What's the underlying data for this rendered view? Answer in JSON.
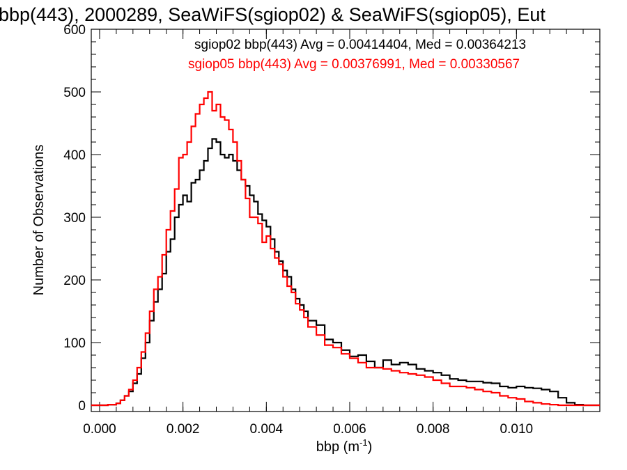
{
  "chart_data": {
    "type": "line",
    "title": "bbp(443), 2000289, SeaWiFS(sgiop02) & SeaWiFS(sgiop05), Eut",
    "xlabel_base": "bbp (m",
    "xlabel_sup": "-1",
    "xlabel_close": ")",
    "ylabel": "Number of Observations",
    "xlim": [
      -0.0002,
      0.012
    ],
    "ylim": [
      -10,
      600
    ],
    "xticks": [
      0.0,
      0.002,
      0.004,
      0.006,
      0.008,
      0.01
    ],
    "xtick_labels": [
      "0.000",
      "0.002",
      "0.004",
      "0.006",
      "0.008",
      "0.010"
    ],
    "yticks": [
      0,
      100,
      200,
      300,
      400,
      500,
      600
    ],
    "ytick_labels": [
      "0",
      "100",
      "200",
      "300",
      "400",
      "500",
      "600"
    ],
    "annotations": [
      {
        "text": "sgiop02 bbp(443) Avg = 0.00414404, Med = 0.00364213",
        "color": "#000000"
      },
      {
        "text": "sgiop05 bbp(443) Avg = 0.00376991, Med = 0.00330567",
        "color": "#ff0000"
      }
    ],
    "series": [
      {
        "color": "#000000",
        "x": [
          0.0,
          0.0002,
          0.0004,
          0.0005,
          0.0006,
          0.0007,
          0.0008,
          0.0009,
          0.001,
          0.0011,
          0.0012,
          0.0013,
          0.0014,
          0.0015,
          0.0016,
          0.0017,
          0.0018,
          0.0019,
          0.002,
          0.0021,
          0.0022,
          0.0023,
          0.0024,
          0.0025,
          0.0026,
          0.0027,
          0.0028,
          0.0029,
          0.003,
          0.0031,
          0.0032,
          0.0033,
          0.0034,
          0.0035,
          0.0036,
          0.0037,
          0.0038,
          0.0039,
          0.004,
          0.0041,
          0.0042,
          0.0043,
          0.0044,
          0.0045,
          0.0046,
          0.0047,
          0.0048,
          0.0049,
          0.005,
          0.0052,
          0.0054,
          0.0056,
          0.0058,
          0.006,
          0.0062,
          0.0064,
          0.0066,
          0.0068,
          0.007,
          0.0072,
          0.0074,
          0.0076,
          0.0078,
          0.008,
          0.0082,
          0.0084,
          0.0086,
          0.0088,
          0.009,
          0.0092,
          0.0094,
          0.0096,
          0.0098,
          0.01,
          0.0102,
          0.0104,
          0.0106,
          0.0108,
          0.011,
          0.0112,
          0.0114,
          0.0116,
          0.0118,
          0.012
        ],
        "values": [
          0,
          1,
          3,
          8,
          15,
          22,
          35,
          50,
          75,
          100,
          135,
          165,
          185,
          210,
          245,
          265,
          300,
          320,
          335,
          325,
          355,
          360,
          375,
          390,
          410,
          425,
          420,
          400,
          395,
          400,
          390,
          375,
          360,
          350,
          335,
          325,
          305,
          295,
          285,
          265,
          245,
          230,
          215,
          205,
          185,
          170,
          160,
          150,
          135,
          128,
          105,
          100,
          88,
          78,
          80,
          70,
          60,
          72,
          65,
          68,
          65,
          58,
          55,
          52,
          48,
          42,
          40,
          38,
          38,
          36,
          35,
          30,
          28,
          30,
          28,
          27,
          25,
          22,
          12,
          4,
          1,
          0,
          0,
          0
        ]
      },
      {
        "color": "#ff0000",
        "x": [
          0.0,
          0.0002,
          0.0004,
          0.0005,
          0.0006,
          0.0007,
          0.0008,
          0.0009,
          0.001,
          0.0011,
          0.0012,
          0.0013,
          0.0014,
          0.0015,
          0.0016,
          0.0017,
          0.0018,
          0.0019,
          0.002,
          0.0021,
          0.0022,
          0.0023,
          0.0024,
          0.0025,
          0.0026,
          0.0027,
          0.0028,
          0.0029,
          0.003,
          0.0031,
          0.0032,
          0.0033,
          0.0034,
          0.0035,
          0.0036,
          0.0037,
          0.0038,
          0.0039,
          0.004,
          0.0041,
          0.0042,
          0.0043,
          0.0044,
          0.0045,
          0.0046,
          0.0047,
          0.0048,
          0.0049,
          0.005,
          0.0052,
          0.0054,
          0.0056,
          0.0058,
          0.006,
          0.0062,
          0.0064,
          0.0066,
          0.0068,
          0.007,
          0.0072,
          0.0074,
          0.0076,
          0.0078,
          0.008,
          0.0082,
          0.0084,
          0.0086,
          0.0088,
          0.009,
          0.0092,
          0.0094,
          0.0096,
          0.0098,
          0.01,
          0.0102,
          0.0104,
          0.0106,
          0.0108,
          0.011,
          0.0112,
          0.0114,
          0.0116,
          0.0118,
          0.012
        ],
        "values": [
          0,
          1,
          3,
          8,
          15,
          25,
          40,
          60,
          85,
          115,
          150,
          185,
          205,
          240,
          280,
          310,
          345,
          395,
          400,
          420,
          445,
          465,
          480,
          490,
          500,
          470,
          480,
          460,
          455,
          440,
          420,
          390,
          360,
          330,
          300,
          300,
          290,
          260,
          270,
          250,
          235,
          225,
          205,
          190,
          180,
          162,
          152,
          140,
          125,
          112,
          96,
          92,
          82,
          75,
          68,
          60,
          60,
          58,
          55,
          52,
          50,
          48,
          45,
          40,
          35,
          30,
          30,
          28,
          25,
          22,
          20,
          15,
          12,
          10,
          6,
          4,
          2,
          1,
          0,
          0,
          0,
          0,
          0,
          0
        ]
      }
    ]
  }
}
